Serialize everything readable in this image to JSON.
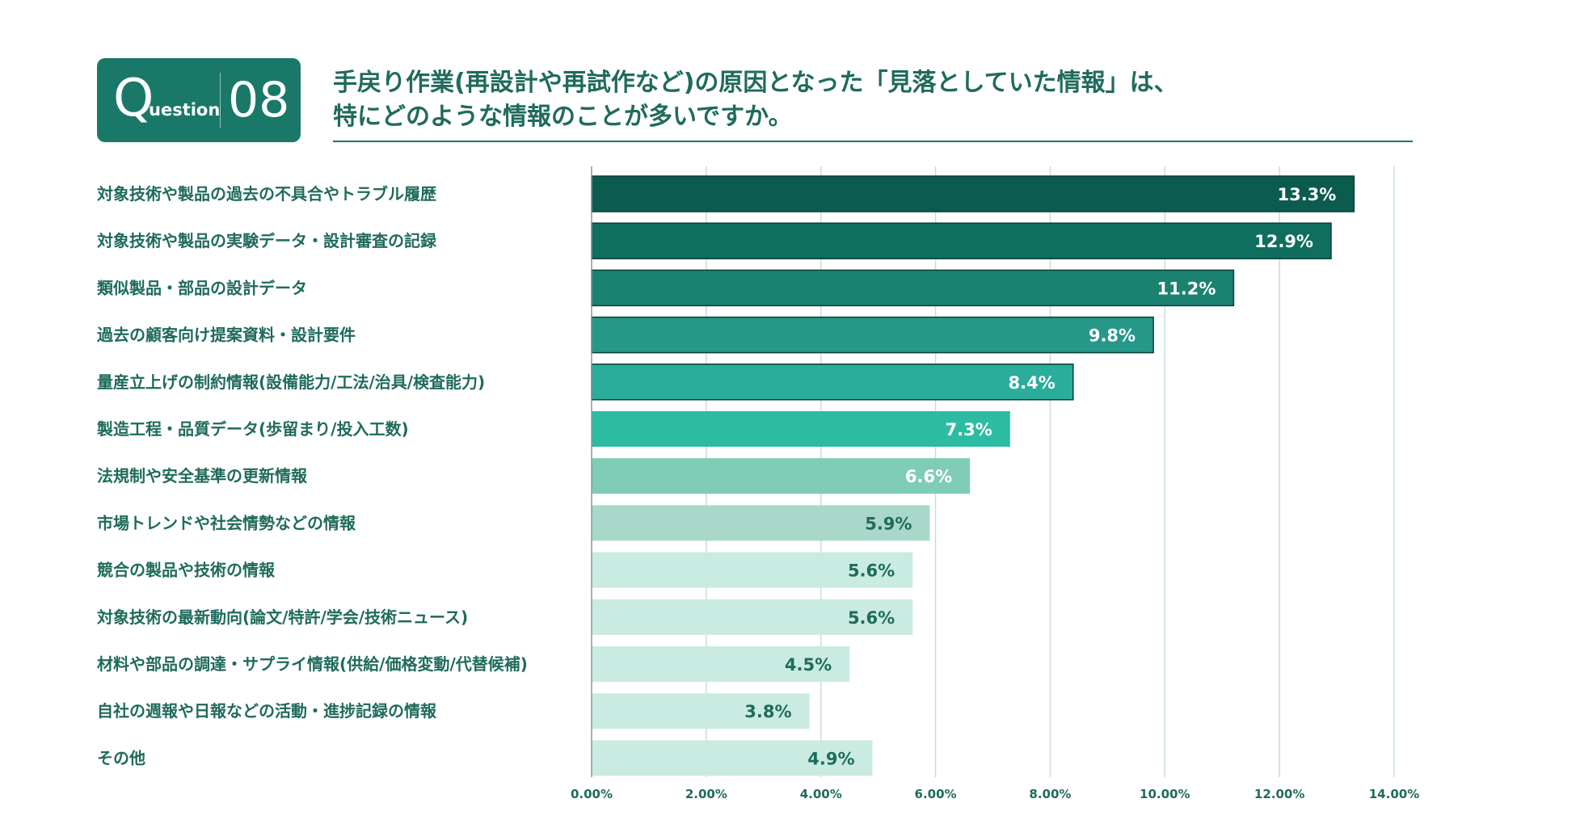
{
  "badge": {
    "q": "Q",
    "word": "uestion",
    "number": "08"
  },
  "title": {
    "line1": "手戻り作業(再設計や再試作など)の原因となった「見落としていた情報」は、",
    "line2": "特にどのような情報のことが多いですか。"
  },
  "colors": {
    "brand": "#1a7868",
    "text": "#1f6b5c",
    "grid": "#c9ddd8",
    "bars": [
      "#0b5c4e",
      "#0f6e5e",
      "#1b8271",
      "#25988a",
      "#2aad9b",
      "#2cbca3",
      "#7fccb7",
      "#a9d8cb",
      "#c9ebe2",
      "#c9ebe2",
      "#c9ebe2",
      "#c9ebe2",
      "#c9ebe2"
    ],
    "value_text": [
      "#ffffff",
      "#ffffff",
      "#ffffff",
      "#ffffff",
      "#ffffff",
      "#ffffff",
      "#ffffff",
      "#1f6b5c",
      "#1f6b5c",
      "#1f6b5c",
      "#1f6b5c",
      "#1f6b5c",
      "#1f6b5c"
    ]
  },
  "chart_data": {
    "type": "bar",
    "orientation": "horizontal",
    "title": "手戻り作業(再設計や再試作など)の原因となった「見落としていた情報」は、特にどのような情報のことが多いですか。",
    "xlabel": "",
    "ylabel": "",
    "xlim": [
      0,
      14
    ],
    "grid": true,
    "categories": [
      "対象技術や製品の過去の不具合やトラブル履歴",
      "対象技術や製品の実験データ・設計審査の記録",
      "類似製品・部品の設計データ",
      "過去の顧客向け提案資料・設計要件",
      "量産立上げの制約情報(設備能力/工法/治具/検査能力)",
      "製造工程・品質データ(歩留まり/投入工数)",
      "法規制や安全基準の更新情報",
      "市場トレンドや社会情勢などの情報",
      "競合の製品や技術の情報",
      "対象技術の最新動向(論文/特許/学会/技術ニュース)",
      "材料や部品の調達・サプライ情報(供給/価格変動/代替候補)",
      "自社の週報や日報などの活動・進捗記録の情報",
      "その他"
    ],
    "values": [
      13.3,
      12.9,
      11.2,
      9.8,
      8.4,
      7.3,
      6.6,
      5.9,
      5.6,
      5.6,
      4.5,
      3.8,
      4.9
    ],
    "value_labels": [
      "13.3%",
      "12.9%",
      "11.2%",
      "9.8%",
      "8.4%",
      "7.3%",
      "6.6%",
      "5.9%",
      "5.6%",
      "5.6%",
      "4.5%",
      "3.8%",
      "4.9%"
    ],
    "ticks": [
      0,
      2,
      4,
      6,
      8,
      10,
      12,
      14
    ],
    "tick_labels": [
      "0.00%",
      "2.00%",
      "4.00%",
      "6.00%",
      "8.00%",
      "10.00%",
      "12.00%",
      "14.00%"
    ]
  }
}
